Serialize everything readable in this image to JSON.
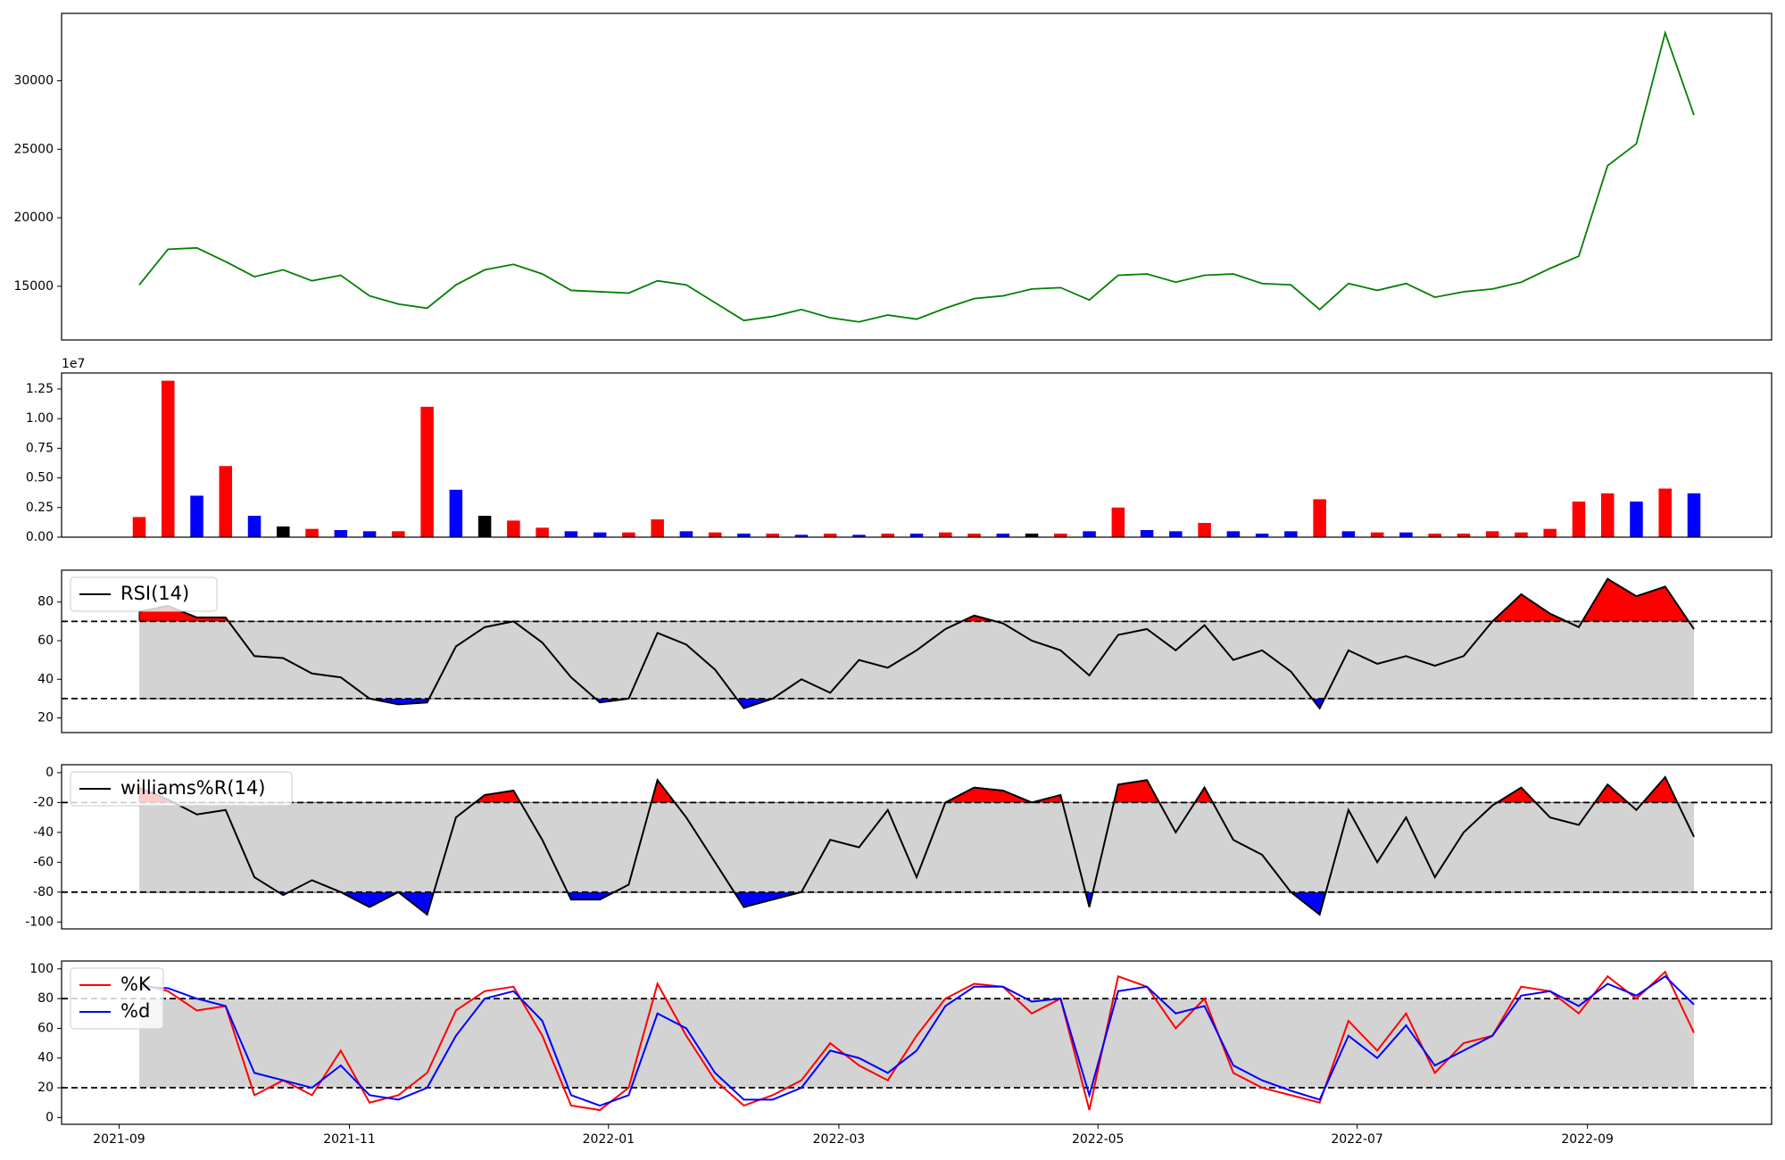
{
  "x": [
    "2021-09",
    "2021-09",
    "2021-09",
    "2021-09",
    "2021-10",
    "2021-10",
    "2021-10",
    "2021-10",
    "2021-11",
    "2021-11",
    "2021-11",
    "2021-11",
    "2021-12",
    "2021-12",
    "2021-12",
    "2021-12",
    "2021-12",
    "2022-01",
    "2022-01",
    "2022-01",
    "2022-01",
    "2022-02",
    "2022-02",
    "2022-02",
    "2022-02",
    "2022-03",
    "2022-03",
    "2022-03",
    "2022-03",
    "2022-03",
    "2022-04",
    "2022-04",
    "2022-04",
    "2022-04",
    "2022-05",
    "2022-05",
    "2022-05",
    "2022-05",
    "2022-06",
    "2022-06",
    "2022-06",
    "2022-06",
    "2022-06",
    "2022-07",
    "2022-07",
    "2022-07",
    "2022-07",
    "2022-08",
    "2022-08",
    "2022-08",
    "2022-08",
    "2022-09",
    "2022-09",
    "2022-09",
    "2022-09"
  ],
  "xticks": [
    "2021-09",
    "2021-11",
    "2022-01",
    "2022-03",
    "2022-05",
    "2022-07",
    "2022-09"
  ],
  "chart_data": [
    {
      "type": "line",
      "ylim": [
        11080,
        34920
      ],
      "yticks": [
        15000,
        20000,
        25000,
        30000
      ],
      "series": [
        {
          "color": "green",
          "values": [
            15100,
            17700,
            17800,
            16800,
            15700,
            16200,
            15400,
            15800,
            14300,
            13700,
            13400,
            15100,
            16200,
            16600,
            15900,
            14700,
            14600,
            14500,
            15400,
            15100,
            13800,
            12500,
            12800,
            13300,
            12700,
            12400,
            12900,
            12600,
            13400,
            14100,
            14300,
            14800,
            14900,
            14000,
            15800,
            15900,
            15300,
            15800,
            15900,
            15200,
            15100,
            13300,
            15200,
            14700,
            15200,
            14200,
            14600,
            14800,
            15300,
            16300,
            17200,
            23800,
            25400,
            33500,
            27500
          ]
        }
      ]
    },
    {
      "type": "bar",
      "ylim": [
        0,
        1.385
      ],
      "offset_label": "1e7",
      "yticks": [
        {
          "value": 0,
          "label": "0.00"
        },
        {
          "value": 0.25,
          "label": "0.25"
        },
        {
          "value": 0.5,
          "label": "0.50"
        },
        {
          "value": 0.75,
          "label": "0.75"
        },
        {
          "value": 1,
          "label": "1.00"
        },
        {
          "value": 1.25,
          "label": "1.25"
        }
      ],
      "values": [
        0.17,
        1.32,
        0.35,
        0.6,
        0.18,
        0.09,
        0.07,
        0.06,
        0.05,
        0.05,
        1.1,
        0.4,
        0.18,
        0.14,
        0.08,
        0.05,
        0.04,
        0.04,
        0.15,
        0.05,
        0.04,
        0.03,
        0.03,
        0.02,
        0.03,
        0.02,
        0.03,
        0.03,
        0.04,
        0.03,
        0.03,
        0.03,
        0.03,
        0.05,
        0.25,
        0.06,
        0.05,
        0.12,
        0.05,
        0.03,
        0.05,
        0.32,
        0.05,
        0.04,
        0.04,
        0.03,
        0.03,
        0.05,
        0.04,
        0.07,
        0.3,
        0.37,
        0.3,
        0.41,
        0.37
      ],
      "colors": [
        "red",
        "red",
        "blue",
        "red",
        "blue",
        "black",
        "red",
        "blue",
        "blue",
        "red",
        "red",
        "blue",
        "black",
        "red",
        "red",
        "blue",
        "blue",
        "red",
        "red",
        "blue",
        "red",
        "blue",
        "red",
        "blue",
        "red",
        "blue",
        "red",
        "blue",
        "red",
        "red",
        "blue",
        "black",
        "red",
        "blue",
        "red",
        "blue",
        "blue",
        "red",
        "blue",
        "blue",
        "blue",
        "red",
        "blue",
        "red",
        "blue",
        "red",
        "red",
        "red",
        "red",
        "red",
        "red",
        "red",
        "blue",
        "red",
        "blue"
      ]
    },
    {
      "type": "oscillator",
      "ylim": [
        12.4,
        96.5
      ],
      "yticks": [
        20,
        40,
        60,
        80
      ],
      "levels": [
        30,
        70
      ],
      "band_color": "lightgray",
      "upper_color": "red",
      "lower_color": "blue",
      "series": [
        {
          "name": "RSI(14)",
          "color": "black",
          "values": [
            75,
            78,
            72,
            72,
            52,
            51,
            43,
            41,
            30,
            27,
            28,
            57,
            67,
            70,
            59,
            41,
            28,
            30,
            64,
            58,
            45,
            25,
            30,
            40,
            33,
            50,
            46,
            55,
            66,
            73,
            69,
            60,
            55,
            42,
            63,
            66,
            55,
            68,
            50,
            55,
            44,
            25,
            55,
            48,
            52,
            47,
            52,
            70,
            84,
            74,
            67,
            92,
            83,
            88,
            66
          ]
        }
      ]
    },
    {
      "type": "oscillator",
      "ylim": [
        -104.6,
        5.3
      ],
      "yticks": [
        -100,
        -80,
        -60,
        -40,
        -20,
        0
      ],
      "levels": [
        -80,
        -20
      ],
      "band_color": "lightgray",
      "upper_color": "red",
      "lower_color": "blue",
      "series": [
        {
          "name": "williams%R(14)",
          "color": "black",
          "values": [
            -10,
            -18,
            -28,
            -25,
            -70,
            -82,
            -72,
            -80,
            -90,
            -80,
            -95,
            -30,
            -15,
            -12,
            -45,
            -85,
            -85,
            -75,
            -5,
            -30,
            -60,
            -90,
            -85,
            -80,
            -45,
            -50,
            -25,
            -70,
            -20,
            -10,
            -12,
            -20,
            -15,
            -90,
            -8,
            -5,
            -40,
            -10,
            -45,
            -55,
            -80,
            -95,
            -25,
            -60,
            -30,
            -70,
            -40,
            -22,
            -10,
            -30,
            -35,
            -8,
            -25,
            -3,
            -43
          ]
        }
      ]
    },
    {
      "type": "oscillator",
      "ylim": [
        -4.6,
        105.3
      ],
      "yticks": [
        0,
        20,
        40,
        60,
        80,
        100
      ],
      "levels": [
        20,
        80
      ],
      "band_color": "lightgray",
      "series": [
        {
          "name": "%K",
          "color": "red",
          "values": [
            90,
            85,
            72,
            75,
            15,
            25,
            15,
            45,
            10,
            15,
            30,
            72,
            85,
            88,
            55,
            8,
            5,
            20,
            90,
            55,
            25,
            8,
            15,
            25,
            50,
            35,
            25,
            55,
            80,
            90,
            88,
            70,
            80,
            5,
            95,
            88,
            60,
            80,
            30,
            20,
            15,
            10,
            65,
            45,
            70,
            30,
            50,
            55,
            88,
            85,
            70,
            95,
            80,
            98,
            57
          ]
        },
        {
          "name": "%d",
          "color": "blue",
          "values": [
            88,
            87,
            80,
            75,
            30,
            25,
            20,
            35,
            15,
            12,
            20,
            55,
            80,
            85,
            65,
            15,
            8,
            15,
            70,
            60,
            30,
            12,
            12,
            20,
            45,
            40,
            30,
            45,
            75,
            88,
            88,
            78,
            80,
            15,
            85,
            88,
            70,
            75,
            35,
            25,
            18,
            12,
            55,
            40,
            62,
            35,
            45,
            55,
            82,
            85,
            75,
            90,
            82,
            95,
            76
          ]
        }
      ]
    }
  ]
}
